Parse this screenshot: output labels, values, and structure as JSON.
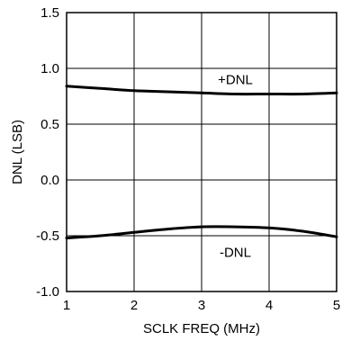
{
  "chart_data": {
    "type": "line",
    "title": "",
    "xlabel": "SCLK FREQ (MHz)",
    "ylabel": "DNL (LSB)",
    "xlim": [
      1,
      5
    ],
    "ylim": [
      -1.0,
      1.5
    ],
    "xticks": [
      1,
      2,
      3,
      4,
      5
    ],
    "yticks": [
      -1.0,
      -0.5,
      0.0,
      0.5,
      1.0,
      1.5
    ],
    "xtick_labels": [
      "1",
      "2",
      "3",
      "4",
      "5"
    ],
    "ytick_labels": [
      "-1.0",
      "-0.5",
      "0.0",
      "0.5",
      "1.0",
      "1.5"
    ],
    "grid": true,
    "legend": "none",
    "series": [
      {
        "name": "+DNL",
        "x": [
          1.0,
          1.5,
          2.0,
          2.5,
          3.0,
          3.5,
          4.0,
          4.5,
          5.0
        ],
        "y": [
          0.84,
          0.82,
          0.8,
          0.79,
          0.78,
          0.77,
          0.77,
          0.77,
          0.78
        ]
      },
      {
        "name": "-DNL",
        "x": [
          1.0,
          1.5,
          2.0,
          2.5,
          3.0,
          3.5,
          4.0,
          4.5,
          5.0
        ],
        "y": [
          -0.52,
          -0.5,
          -0.47,
          -0.44,
          -0.42,
          -0.42,
          -0.43,
          -0.46,
          -0.51
        ]
      }
    ],
    "annotations": [
      "+DNL",
      "-DNL"
    ]
  }
}
